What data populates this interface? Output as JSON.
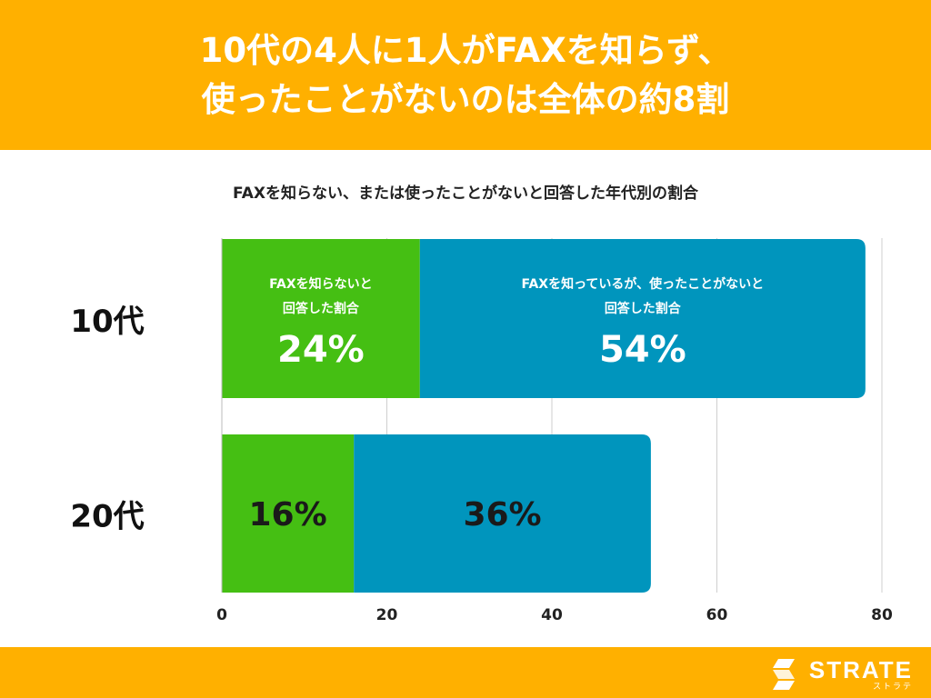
{
  "header": {
    "title_line1": "10代の4人に1人がFAXを知らず、",
    "title_line2": "使ったことがないのは全体の約8割"
  },
  "chart_data": {
    "type": "bar",
    "orientation": "horizontal",
    "stacked": true,
    "title": "FAXを知らない、または使ったことがないと回答した年代別の割合",
    "categories": [
      "10代",
      "20代"
    ],
    "series": [
      {
        "name": "FAXを知らないと回答した割合",
        "values": [
          24,
          16
        ],
        "color": "#45BF13"
      },
      {
        "name": "FAXを知っているが、使ったことがないと回答した割合",
        "values": [
          54,
          36
        ],
        "color": "#0095BD"
      }
    ],
    "inline_labels": [
      [
        "FAXを知らないと",
        "回答した割合"
      ],
      [
        "FAXを知っているが、使ったことがないと",
        "回答した割合"
      ]
    ],
    "value_labels": [
      [
        "24%",
        "54%"
      ],
      [
        "16%",
        "36%"
      ]
    ],
    "xlim": [
      0,
      80
    ],
    "xticks": [
      0,
      20,
      40,
      60,
      80
    ],
    "xtick_labels": [
      "0",
      "20",
      "40",
      "60",
      "80"
    ],
    "grid": true
  },
  "footer": {
    "logo_name": "STRATE",
    "logo_kana": "ストラテ"
  }
}
